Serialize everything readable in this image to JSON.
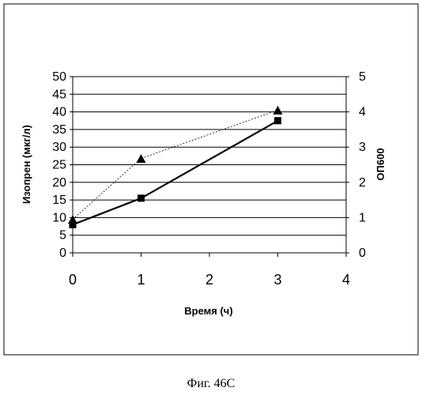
{
  "chart_data": {
    "type": "line",
    "x": [
      0,
      1,
      3
    ],
    "series": [
      {
        "values": [
          9.5,
          26.8,
          40.5
        ],
        "axis": "right",
        "marker": "triangle",
        "line_style": "dashed-thin",
        "axis_values": [
          0.95,
          2.68,
          4.05
        ]
      },
      {
        "values": [
          8.0,
          15.5,
          37.5
        ],
        "axis": "left",
        "marker": "square",
        "line_style": "solid-thick"
      }
    ],
    "xlabel": "Время (ч)",
    "ylabel": "Изопрен (мкг/л)",
    "y2label": "ОП600",
    "xlim": [
      0,
      4
    ],
    "ylim": [
      0,
      50
    ],
    "y2lim": [
      0,
      5
    ],
    "x_ticks": [
      "0",
      "1",
      "2",
      "3",
      "4"
    ],
    "y_ticks": [
      "0",
      "5",
      "10",
      "15",
      "20",
      "25",
      "30",
      "35",
      "40",
      "45",
      "50"
    ],
    "y2_ticks": [
      "0",
      "1",
      "2",
      "3",
      "4",
      "5"
    ],
    "grid": true,
    "legend": "none"
  },
  "caption": "Фиг. 46С"
}
